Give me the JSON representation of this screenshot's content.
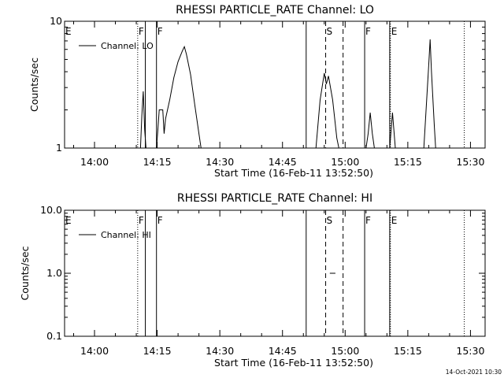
{
  "footer": {
    "timestamp": "14-Oct-2021 10:30"
  },
  "colors": {
    "background": "#ffffff",
    "foreground": "#000000"
  },
  "chart_data": [
    {
      "type": "line",
      "title": "RHESSI PARTICLE_RATE Channel: LO",
      "xlabel": "Start Time (16-Feb-11 13:52:50)",
      "ylabel": "Counts/sec",
      "yscale": "log",
      "ylim": [
        1,
        10
      ],
      "xlim": [
        "13:52:50",
        "15:33:30"
      ],
      "x_ticks": [
        "14:00",
        "14:15",
        "14:30",
        "14:45",
        "15:00",
        "15:15",
        "15:30"
      ],
      "y_ticks": [
        "1",
        "10"
      ],
      "legend": {
        "position": "top-left",
        "label": "Channel: LO"
      },
      "series": [
        {
          "name": "Channel: LO",
          "points": [
            [
              "14:11:00",
              1
            ],
            [
              "14:11:20",
              1.8
            ],
            [
              "14:11:40",
              2.8
            ],
            [
              "14:12:00",
              1.4
            ],
            [
              "14:12:20",
              1
            ],
            [
              "14:14:50",
              1
            ],
            [
              "14:15:10",
              1.4
            ],
            [
              "14:15:30",
              2.0
            ],
            [
              "14:16:20",
              2.0
            ],
            [
              "14:16:40",
              1.3
            ],
            [
              "14:17:00",
              1.7
            ],
            [
              "14:18:00",
              2.4
            ],
            [
              "14:19:00",
              3.6
            ],
            [
              "14:20:00",
              4.8
            ],
            [
              "14:21:00",
              5.8
            ],
            [
              "14:21:30",
              6.3
            ],
            [
              "14:22:00",
              5.5
            ],
            [
              "14:23:00",
              3.8
            ],
            [
              "14:24:00",
              2.2
            ],
            [
              "14:25:00",
              1.3
            ],
            [
              "14:25:30",
              1
            ],
            [
              "14:53:00",
              1
            ],
            [
              "14:54:00",
              2.4
            ],
            [
              "14:55:00",
              3.9
            ],
            [
              "14:55:30",
              3.2
            ],
            [
              "14:56:00",
              3.7
            ],
            [
              "14:57:00",
              2.4
            ],
            [
              "14:58:00",
              1.2
            ],
            [
              "14:58:30",
              1
            ],
            [
              "15:05:00",
              1
            ],
            [
              "15:05:30",
              1.3
            ],
            [
              "15:06:00",
              1.9
            ],
            [
              "15:06:30",
              1.3
            ],
            [
              "15:07:00",
              1
            ],
            [
              "15:10:40",
              1
            ],
            [
              "15:11:20",
              1.9
            ],
            [
              "15:12:00",
              1
            ],
            [
              "15:18:50",
              1
            ],
            [
              "15:20:00",
              4.5
            ],
            [
              "15:20:20",
              7.2
            ],
            [
              "15:20:40",
              4.0
            ],
            [
              "15:21:20",
              1.5
            ],
            [
              "15:21:40",
              1
            ]
          ]
        }
      ],
      "markers": [
        {
          "label": "E",
          "t": "13:52:50",
          "style": "dotted"
        },
        {
          "label": "F",
          "t": "14:10:20",
          "style": "dotted"
        },
        {
          "label": "",
          "t": "14:12:10",
          "style": "solid"
        },
        {
          "label": "F",
          "t": "14:14:50",
          "style": "solid"
        },
        {
          "label": "",
          "t": "14:50:40",
          "style": "solid"
        },
        {
          "label": "S",
          "t": "14:55:20",
          "style": "dashed"
        },
        {
          "label": "",
          "t": "14:59:30",
          "style": "dashed"
        },
        {
          "label": "F",
          "t": "15:04:40",
          "style": "solid"
        },
        {
          "label": "",
          "t": "15:10:40",
          "style": "solid"
        },
        {
          "label": "E",
          "t": "15:10:50",
          "style": "dotted"
        },
        {
          "label": "",
          "t": "15:28:30",
          "style": "dotted"
        }
      ]
    },
    {
      "type": "line",
      "title": "RHESSI PARTICLE_RATE Channel: HI",
      "xlabel": "Start Time (16-Feb-11 13:52:50)",
      "ylabel": "Counts/sec",
      "yscale": "log",
      "ylim": [
        0.1,
        10
      ],
      "xlim": [
        "13:52:50",
        "15:33:30"
      ],
      "x_ticks": [
        "14:00",
        "14:15",
        "14:30",
        "14:45",
        "15:00",
        "15:15",
        "15:30"
      ],
      "y_ticks": [
        "0.1",
        "1.0",
        "10.0"
      ],
      "legend": {
        "position": "top-left",
        "label": "Channel: HI"
      },
      "series": [
        {
          "name": "Channel: HI",
          "points": [
            [
              "14:56:20",
              1.0
            ],
            [
              "14:57:40",
              1.0
            ]
          ]
        }
      ],
      "markers": [
        {
          "label": "E",
          "t": "13:52:50",
          "style": "dotted"
        },
        {
          "label": "F",
          "t": "14:10:20",
          "style": "dotted"
        },
        {
          "label": "",
          "t": "14:12:10",
          "style": "solid"
        },
        {
          "label": "F",
          "t": "14:14:50",
          "style": "solid"
        },
        {
          "label": "",
          "t": "14:50:40",
          "style": "solid"
        },
        {
          "label": "S",
          "t": "14:55:20",
          "style": "dashed"
        },
        {
          "label": "",
          "t": "14:59:30",
          "style": "dashed"
        },
        {
          "label": "F",
          "t": "15:04:40",
          "style": "solid"
        },
        {
          "label": "",
          "t": "15:10:40",
          "style": "solid"
        },
        {
          "label": "E",
          "t": "15:10:50",
          "style": "dotted"
        },
        {
          "label": "",
          "t": "15:28:30",
          "style": "dotted"
        }
      ]
    }
  ]
}
